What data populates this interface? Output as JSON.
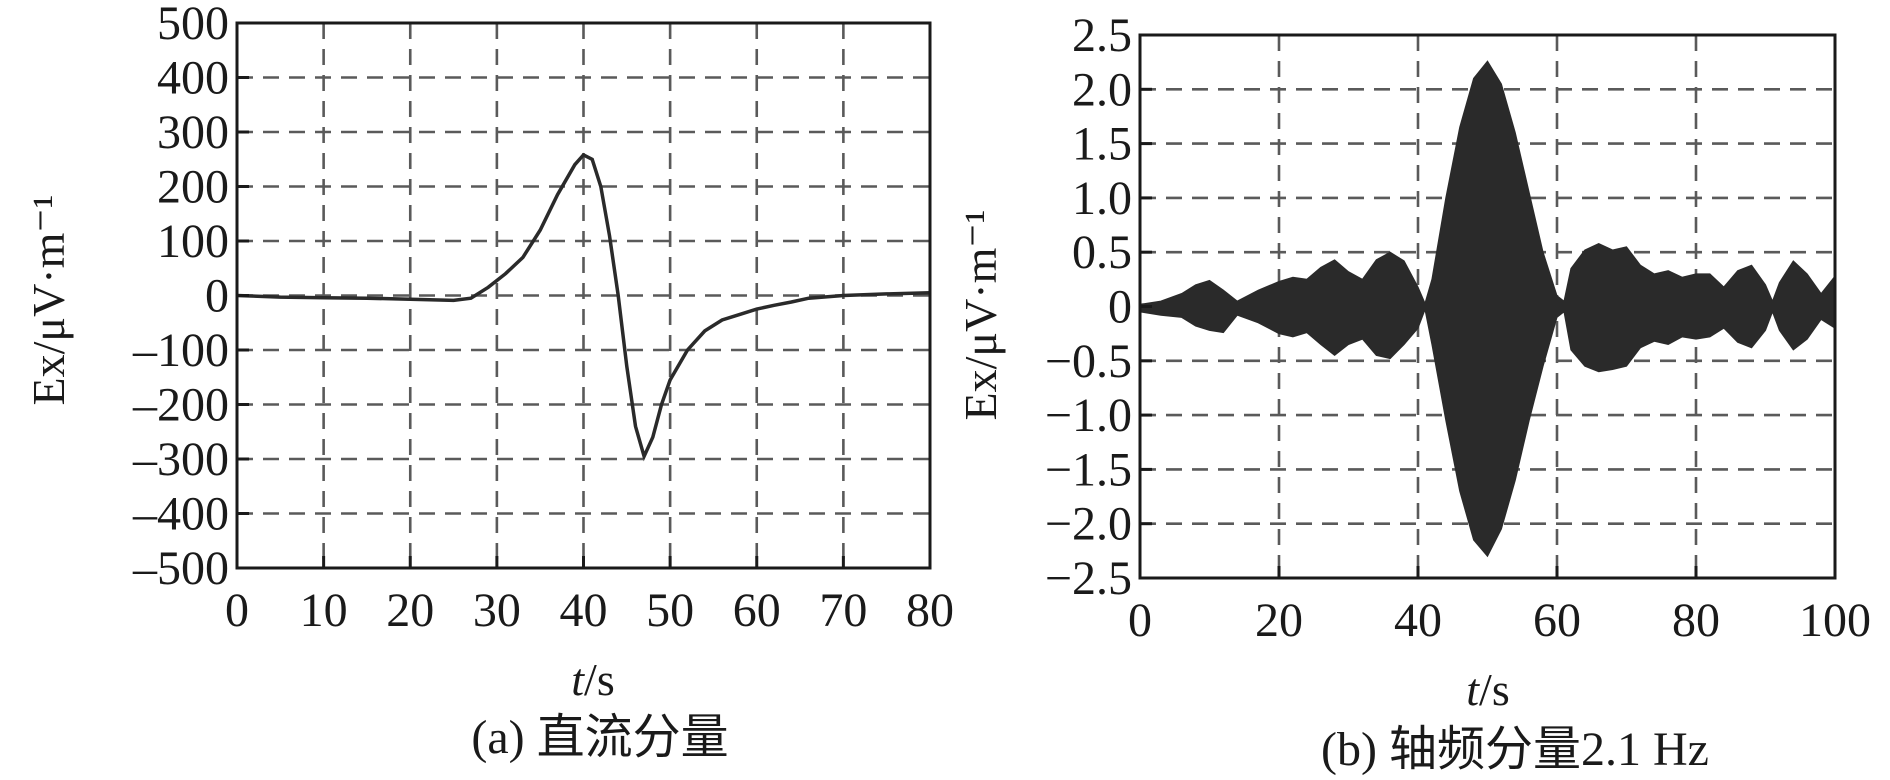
{
  "figure": {
    "panel_a_caption": "(a) 直流分量",
    "panel_b_caption": "(b) 轴频分量2.1 Hz"
  },
  "chart_data": [
    {
      "type": "line",
      "title": "",
      "caption": "(a) 直流分量",
      "xlabel": "t/s",
      "ylabel": "Ex/μV·m⁻¹",
      "xlim": [
        0,
        80
      ],
      "ylim": [
        -500,
        500
      ],
      "xticks": [
        0,
        10,
        20,
        30,
        40,
        50,
        60,
        70,
        80
      ],
      "yticks": [
        500,
        400,
        300,
        200,
        100,
        0,
        -100,
        -200,
        -300,
        -400,
        -500
      ],
      "grid": true,
      "series": [
        {
          "x": [
            0,
            5,
            10,
            15,
            20,
            25,
            27,
            29,
            31,
            33,
            35,
            37,
            39,
            40,
            41,
            42,
            43,
            44,
            45,
            46,
            47,
            48,
            49,
            50,
            52,
            54,
            56,
            58,
            60,
            62,
            64,
            66,
            70,
            75,
            80
          ],
          "y": [
            0,
            -3,
            -4,
            -5,
            -7,
            -9,
            -5,
            15,
            40,
            70,
            120,
            185,
            240,
            258,
            250,
            200,
            110,
            0,
            -130,
            -240,
            -295,
            -260,
            -200,
            -155,
            -100,
            -65,
            -45,
            -35,
            -25,
            -18,
            -12,
            -5,
            0,
            3,
            5
          ]
        }
      ]
    },
    {
      "type": "area",
      "title": "",
      "caption": "(b) 轴频分量2.1 Hz",
      "xlabel": "t/s",
      "ylabel": "Ex/μV·m⁻¹",
      "xlim": [
        0,
        100
      ],
      "ylim": [
        -2.5,
        2.5
      ],
      "xticks": [
        0,
        20,
        40,
        60,
        80,
        100
      ],
      "yticks": [
        2.5,
        2.0,
        1.5,
        1.0,
        0.5,
        0,
        -0.5,
        -1.0,
        -1.5,
        -2.0,
        -2.5
      ],
      "ytick_labels": [
        "2.5",
        "2.0",
        "1.5",
        "1.0",
        "0.5",
        "0",
        "−0.5",
        "−1.0",
        "−1.5",
        "−2.0",
        "−2.5"
      ],
      "grid": true,
      "frequency_hz": 2.1,
      "envelope": {
        "x": [
          0,
          3,
          6,
          8,
          10,
          12,
          14,
          17,
          20,
          22,
          24,
          26,
          28,
          30,
          32,
          34,
          36,
          38,
          40,
          41,
          42,
          44,
          46,
          48,
          50,
          52,
          54,
          56,
          58,
          60,
          61,
          62,
          64,
          66,
          68,
          70,
          72,
          74,
          76,
          78,
          80,
          82,
          84,
          86,
          88,
          90,
          91,
          92,
          94,
          96,
          98,
          100
        ],
        "upper": [
          0.02,
          0.05,
          0.12,
          0.2,
          0.24,
          0.15,
          0.05,
          0.15,
          0.23,
          0.27,
          0.25,
          0.36,
          0.43,
          0.32,
          0.25,
          0.43,
          0.5,
          0.42,
          0.18,
          0.03,
          0.25,
          1.0,
          1.65,
          2.1,
          2.26,
          2.05,
          1.6,
          1.05,
          0.5,
          0.1,
          0.05,
          0.35,
          0.52,
          0.58,
          0.52,
          0.55,
          0.38,
          0.3,
          0.33,
          0.27,
          0.3,
          0.3,
          0.18,
          0.33,
          0.38,
          0.2,
          0.05,
          0.22,
          0.42,
          0.3,
          0.12,
          0.28
        ],
        "lower": [
          -0.05,
          -0.08,
          -0.1,
          -0.18,
          -0.22,
          -0.24,
          -0.08,
          -0.15,
          -0.25,
          -0.28,
          -0.24,
          -0.35,
          -0.45,
          -0.35,
          -0.3,
          -0.45,
          -0.48,
          -0.35,
          -0.2,
          -0.03,
          -0.35,
          -1.05,
          -1.7,
          -2.15,
          -2.3,
          -2.05,
          -1.6,
          -1.05,
          -0.55,
          -0.1,
          -0.05,
          -0.4,
          -0.55,
          -0.6,
          -0.58,
          -0.55,
          -0.38,
          -0.32,
          -0.35,
          -0.28,
          -0.3,
          -0.28,
          -0.2,
          -0.33,
          -0.38,
          -0.22,
          -0.05,
          -0.22,
          -0.4,
          -0.3,
          -0.12,
          -0.2
        ]
      }
    }
  ]
}
